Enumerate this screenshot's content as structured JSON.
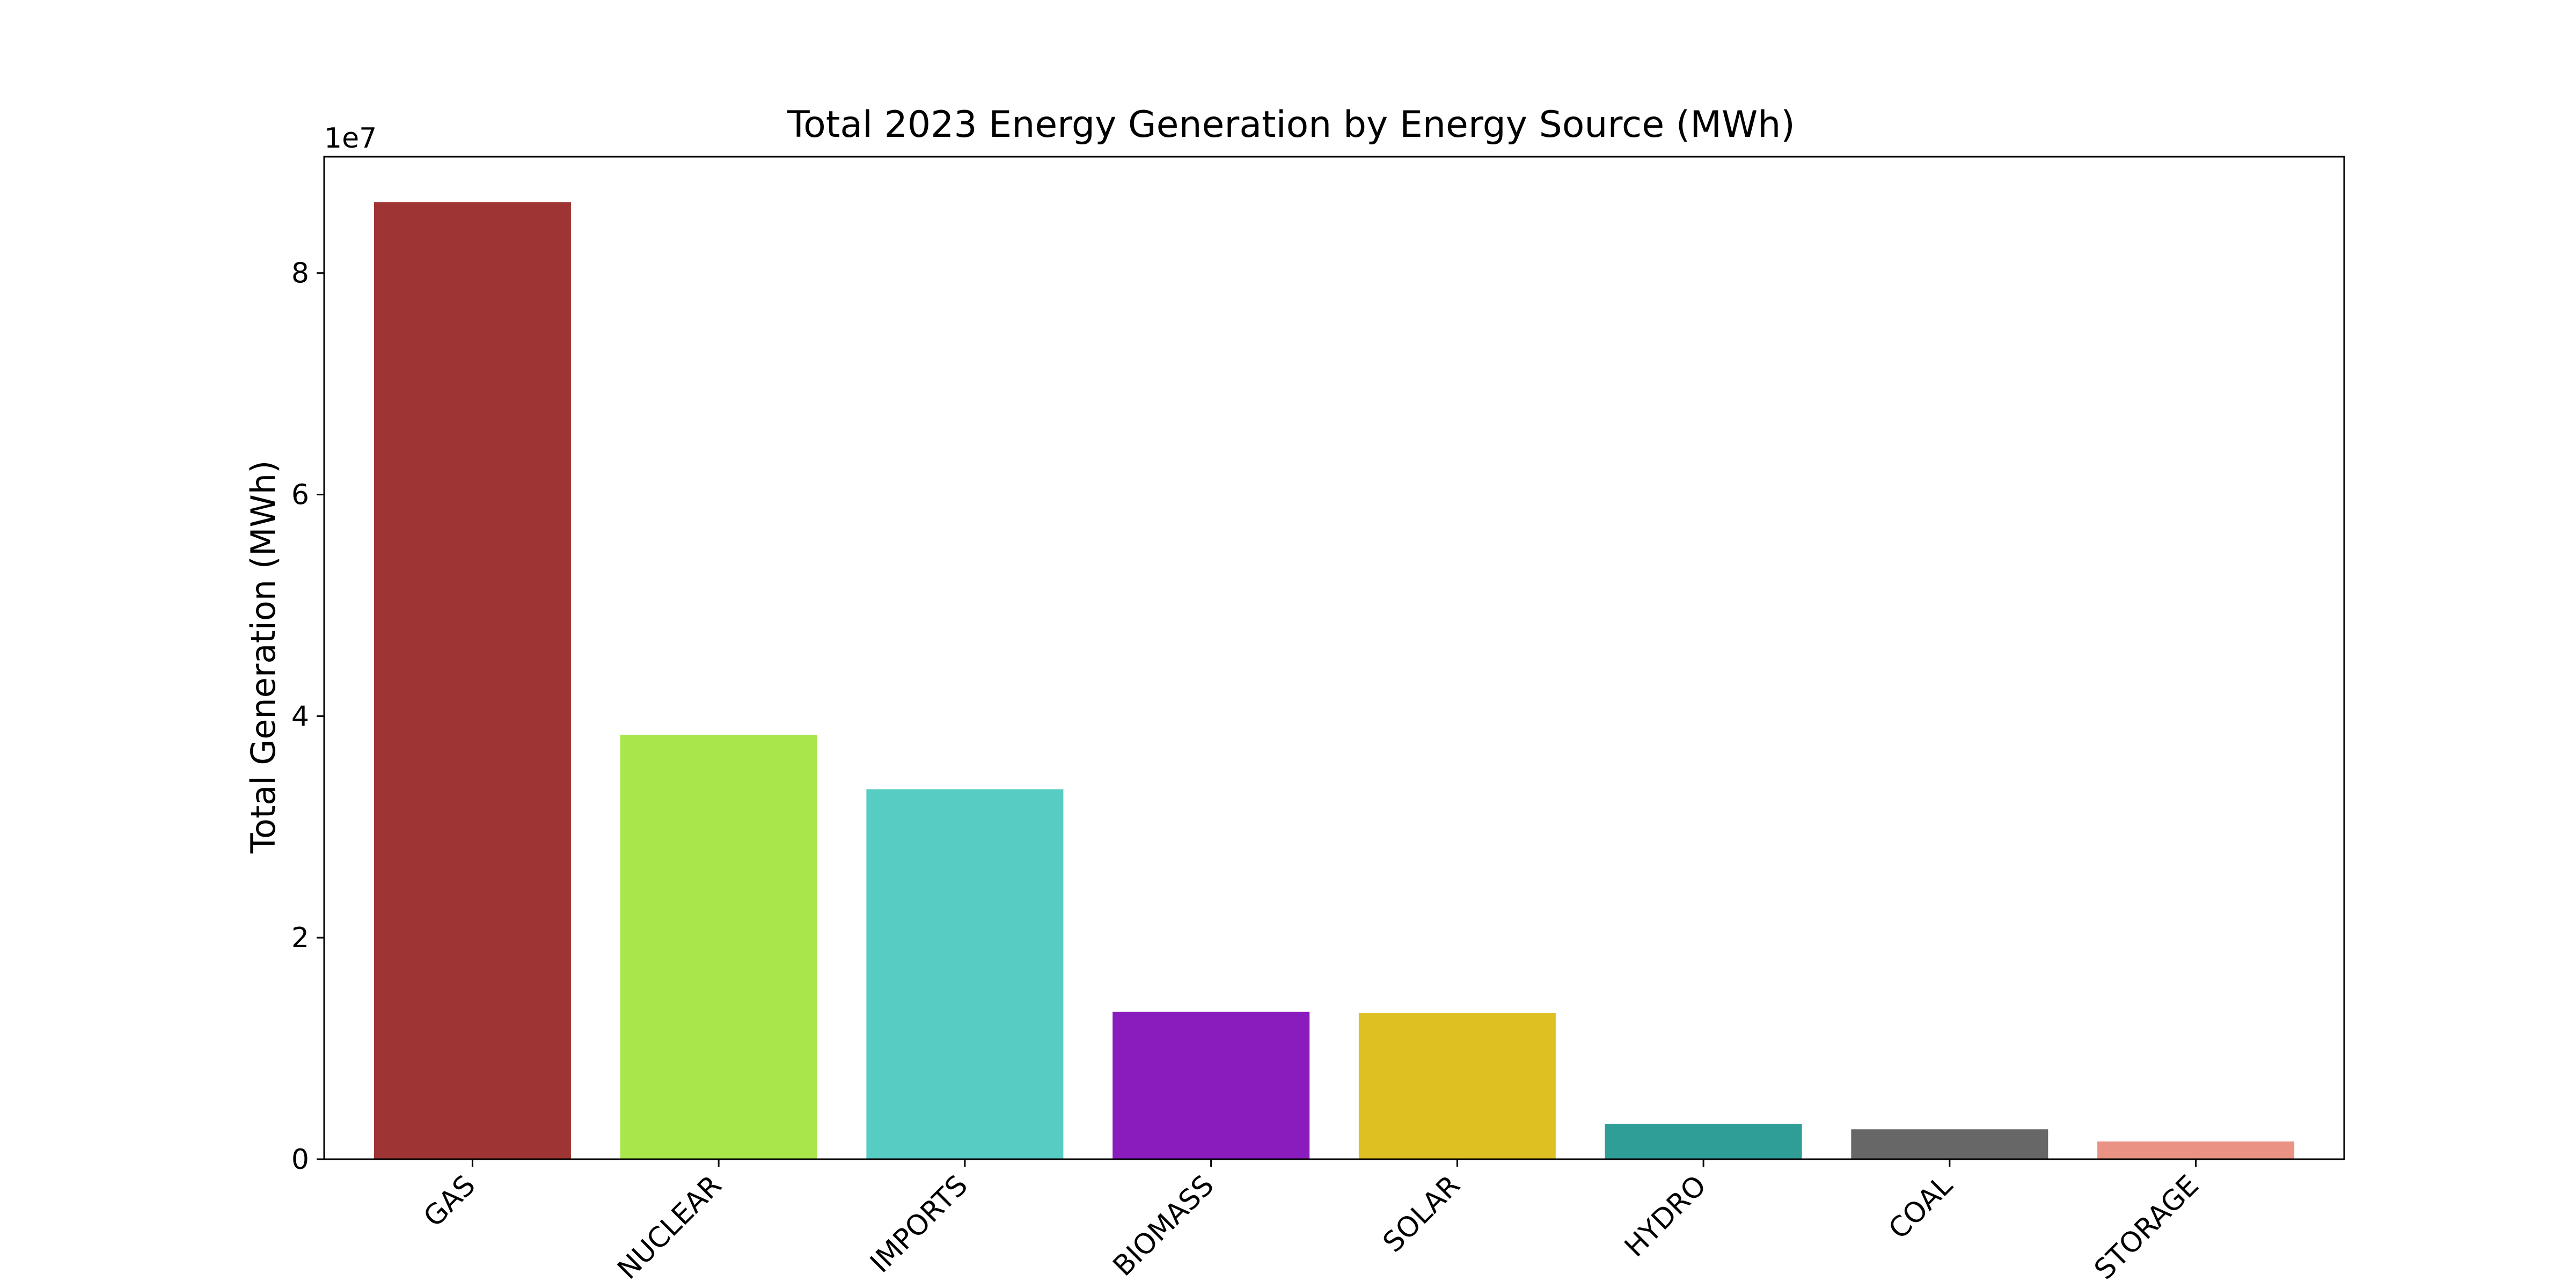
{
  "chart_data": {
    "type": "bar",
    "title": "Total 2023 Energy Generation by Energy Source (MWh)",
    "xlabel": "",
    "ylabel": "Total Generation (MWh)",
    "offset_label": "1e7",
    "categories": [
      "GAS",
      "NUCLEAR",
      "IMPORTS",
      "BIOMASS",
      "SOLAR",
      "HYDRO",
      "COAL",
      "STORAGE"
    ],
    "values": [
      86400000,
      38300000,
      33400000,
      13300000,
      13200000,
      3200000,
      2700000,
      1600000
    ],
    "colors": [
      "#9e3434",
      "#a8e64b",
      "#57ccc2",
      "#8a1bbd",
      "#dfc022",
      "#2f9e96",
      "#676767",
      "#ea9283"
    ],
    "ylim": [
      0,
      90500000
    ],
    "yticks": [
      0,
      20000000,
      40000000,
      60000000,
      80000000
    ],
    "ytick_labels": [
      "0",
      "2",
      "4",
      "6",
      "8"
    ],
    "grid": false,
    "legend": "none"
  }
}
